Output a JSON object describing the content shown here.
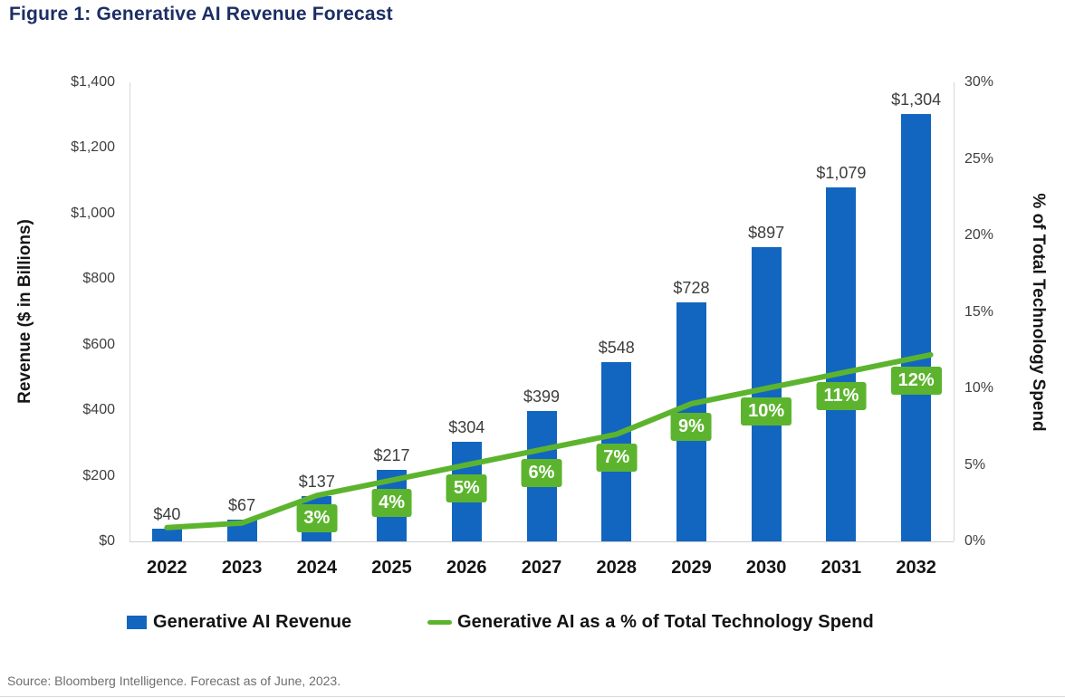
{
  "title": "Figure 1: Generative AI Revenue Forecast",
  "source": "Source: Bloomberg Intelligence. Forecast as of June, 2023.",
  "colors": {
    "title_navy": "#1c2e63",
    "bar_blue": "#1266c0",
    "line_green": "#5cb42e",
    "badge_green": "#5cb42e",
    "axis_border": "#d6d6d6"
  },
  "legend": {
    "bar_label": "Generative AI Revenue",
    "line_label": "Generative AI as a % of Total Technology Spend"
  },
  "chart_data": {
    "type": "bar+line combo",
    "title": "Figure 1: Generative AI Revenue Forecast",
    "categories": [
      "2022",
      "2023",
      "2024",
      "2025",
      "2026",
      "2027",
      "2028",
      "2029",
      "2030",
      "2031",
      "2032"
    ],
    "series": [
      {
        "name": "Generative AI Revenue",
        "chart_type": "bar",
        "axis": "left",
        "color": "#1266c0",
        "values": [
          40,
          67,
          137,
          217,
          304,
          399,
          548,
          728,
          897,
          1079,
          1304
        ],
        "labels": [
          "$40",
          "$67",
          "$137",
          "$217",
          "$304",
          "$399",
          "$548",
          "$728",
          "$897",
          "$1,079",
          "$1,304"
        ]
      },
      {
        "name": "Generative AI as a % of Total Technology Spend",
        "chart_type": "line",
        "axis": "right",
        "color": "#5cb42e",
        "values": [
          0.9,
          1.2,
          3,
          4,
          5,
          6,
          7,
          9,
          10,
          11,
          12
        ],
        "labels": [
          "",
          "",
          "3%",
          "4%",
          "5%",
          "6%",
          "7%",
          "9%",
          "10%",
          "11%",
          "12%"
        ]
      }
    ],
    "left_axis": {
      "label": "Revenue ($ in Billions)",
      "min": 0,
      "max": 1400,
      "tick_values": [
        1400,
        1200,
        1000,
        800,
        600,
        400,
        200,
        0
      ],
      "tick_labels": [
        "$1,400",
        "$1,200",
        "$1,000",
        "$800",
        "$600",
        "$400",
        "$200",
        "$0"
      ]
    },
    "right_axis": {
      "label": "% of Total Technology Spend",
      "min": 0,
      "max": 30,
      "tick_values": [
        30,
        25,
        20,
        15,
        10,
        5,
        0
      ],
      "tick_labels": [
        "30%",
        "25%",
        "20%",
        "15%",
        "10%",
        "5%",
        "0%"
      ]
    },
    "grid": "off",
    "legend_position": "bottom"
  }
}
